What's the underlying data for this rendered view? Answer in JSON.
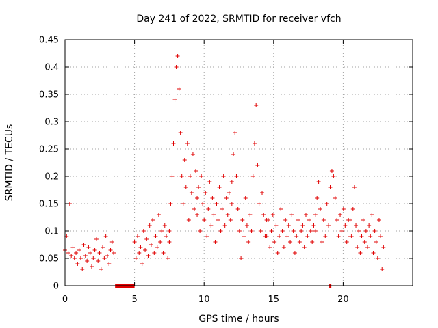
{
  "chart_data": {
    "type": "scatter",
    "title": "Day 241 of 2022, SRMTID for receiver vfch",
    "xlabel": "GPS time / hours",
    "ylabel": "SRMTID / TECUs",
    "xlim": [
      0,
      25
    ],
    "ylim": [
      0,
      0.45
    ],
    "x_ticks": [
      0,
      5,
      10,
      15,
      20
    ],
    "x_tick_labels": [
      "0",
      "5",
      "10",
      "15",
      "20"
    ],
    "y_ticks": [
      0,
      0.05,
      0.1,
      0.15,
      0.2,
      0.25,
      0.3,
      0.35,
      0.4,
      0.45
    ],
    "y_tick_labels": [
      "0",
      "0.05",
      "0.1",
      "0.15",
      "0.2",
      "0.25",
      "0.3",
      "0.35",
      "0.4",
      "0.45"
    ],
    "grid": true,
    "marker": "+",
    "series": [
      {
        "name": "SRMTID",
        "color": "#e00000",
        "segments": [
          {
            "x_start": 0.0,
            "x_end": 3.5,
            "values": [
              0.065,
              0.09,
              0.06,
              0.15,
              0.055,
              0.07,
              0.05,
              0.06,
              0.04,
              0.065,
              0.05,
              0.03,
              0.075,
              0.055,
              0.045,
              0.07,
              0.06,
              0.035,
              0.05,
              0.065,
              0.085,
              0.045,
              0.06,
              0.03,
              0.07,
              0.05,
              0.09,
              0.055,
              0.04,
              0.065,
              0.08,
              0.06
            ]
          },
          {
            "x_start": 5.0,
            "x_end": 7.5,
            "values": [
              0.08,
              0.05,
              0.09,
              0.06,
              0.07,
              0.04,
              0.1,
              0.065,
              0.085,
              0.055,
              0.11,
              0.075,
              0.12,
              0.06,
              0.09,
              0.07,
              0.13,
              0.08,
              0.1,
              0.06,
              0.11,
              0.09,
              0.05,
              0.08
            ]
          },
          {
            "x_start": 7.5,
            "x_end": 9.5,
            "values": [
              0.1,
              0.15,
              0.2,
              0.26,
              0.34,
              0.4,
              0.42,
              0.36,
              0.28,
              0.2,
              0.15,
              0.23,
              0.18,
              0.26,
              0.12,
              0.2,
              0.17,
              0.24,
              0.14,
              0.21,
              0.16
            ]
          },
          {
            "x_start": 9.5,
            "x_end": 12.0,
            "values": [
              0.13,
              0.18,
              0.1,
              0.2,
              0.15,
              0.12,
              0.17,
              0.09,
              0.14,
              0.19,
              0.11,
              0.16,
              0.13,
              0.08,
              0.15,
              0.12,
              0.18,
              0.1,
              0.14,
              0.2,
              0.11,
              0.16,
              0.13,
              0.17,
              0.12,
              0.19
            ]
          },
          {
            "x_start": 12.0,
            "x_end": 14.5,
            "values": [
              0.15,
              0.24,
              0.28,
              0.2,
              0.14,
              0.1,
              0.05,
              0.12,
              0.09,
              0.16,
              0.11,
              0.08,
              0.13,
              0.1,
              0.2,
              0.26,
              0.33,
              0.22,
              0.15,
              0.1,
              0.17,
              0.13,
              0.09,
              0.12
            ]
          },
          {
            "x_start": 14.5,
            "x_end": 18.0,
            "values": [
              0.09,
              0.12,
              0.07,
              0.1,
              0.13,
              0.08,
              0.11,
              0.06,
              0.09,
              0.14,
              0.1,
              0.07,
              0.12,
              0.09,
              0.11,
              0.08,
              0.13,
              0.1,
              0.06,
              0.09,
              0.12,
              0.08,
              0.1,
              0.11,
              0.07,
              0.13,
              0.09,
              0.12,
              0.1,
              0.08,
              0.11,
              0.13
            ]
          },
          {
            "x_start": 18.0,
            "x_end": 20.5,
            "values": [
              0.1,
              0.16,
              0.19,
              0.14,
              0.08,
              0.12,
              0.09,
              0.15,
              0.11,
              0.18,
              0.21,
              0.2,
              0.16,
              0.12,
              0.09,
              0.13,
              0.1,
              0.14,
              0.11,
              0.08,
              0.12,
              0.09
            ]
          },
          {
            "x_start": 20.5,
            "x_end": 22.9,
            "values": [
              0.12,
              0.09,
              0.14,
              0.18,
              0.11,
              0.07,
              0.1,
              0.06,
              0.09,
              0.12,
              0.08,
              0.1,
              0.07,
              0.11,
              0.09,
              0.13,
              0.06,
              0.1,
              0.08,
              0.05,
              0.12,
              0.09,
              0.03,
              0.07
            ]
          }
        ]
      }
    ],
    "gaps": [
      {
        "x_start": 3.6,
        "x_end": 5.0,
        "y": 0
      },
      {
        "x_start": 19.0,
        "x_end": 19.15,
        "y": 0
      }
    ]
  }
}
